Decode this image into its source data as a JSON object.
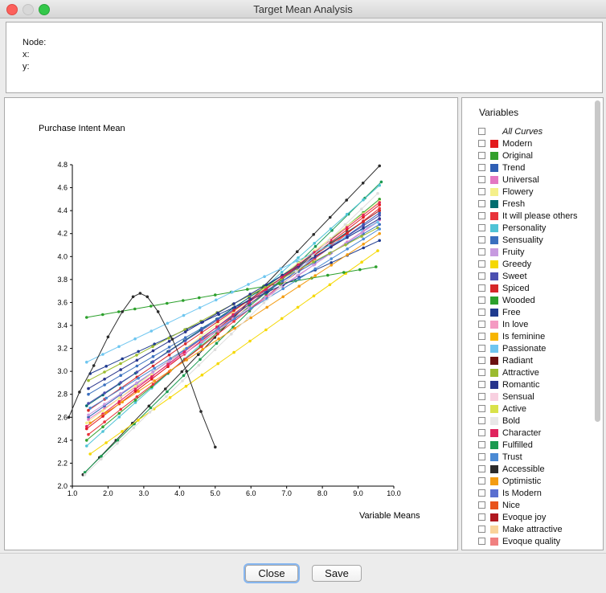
{
  "window": {
    "title": "Target Mean Analysis"
  },
  "info": {
    "node_label": "Node:",
    "x_label": "x:",
    "y_label": "y:"
  },
  "legend": {
    "title": "Variables",
    "items": [
      {
        "label": "All Curves",
        "color": ""
      },
      {
        "label": "Modern",
        "color": "#e31a1c"
      },
      {
        "label": "Original",
        "color": "#33a02c"
      },
      {
        "label": "Trend",
        "color": "#2f5fb5"
      },
      {
        "label": "Universal",
        "color": "#e377c2"
      },
      {
        "label": "Flowery",
        "color": "#f5f08a"
      },
      {
        "label": "Fresh",
        "color": "#006d6f"
      },
      {
        "label": "It will please others",
        "color": "#e8333a"
      },
      {
        "label": "Personality",
        "color": "#4fc3d6"
      },
      {
        "label": "Sensuality",
        "color": "#3a6fbf"
      },
      {
        "label": "Fruity",
        "color": "#c79ae0"
      },
      {
        "label": "Greedy",
        "color": "#f5d800"
      },
      {
        "label": "Sweet",
        "color": "#4b4fb0"
      },
      {
        "label": "Spiced",
        "color": "#d62728"
      },
      {
        "label": "Wooded",
        "color": "#2ca02c"
      },
      {
        "label": "Free",
        "color": "#1f3b8f"
      },
      {
        "label": "In love",
        "color": "#f49ac2"
      },
      {
        "label": "Is feminine",
        "color": "#f7b500"
      },
      {
        "label": "Passionate",
        "color": "#6ec6f0"
      },
      {
        "label": "Radiant",
        "color": "#6b1010"
      },
      {
        "label": "Attractive",
        "color": "#9bbb2f"
      },
      {
        "label": "Romantic",
        "color": "#27348b"
      },
      {
        "label": "Sensual",
        "color": "#f8d0e0"
      },
      {
        "label": "Active",
        "color": "#d9e24a"
      },
      {
        "label": "Bold",
        "color": "#e8e8e8"
      },
      {
        "label": "Character",
        "color": "#e0245e"
      },
      {
        "label": "Fulfilled",
        "color": "#1a9a50"
      },
      {
        "label": "Trust",
        "color": "#4a8ad4"
      },
      {
        "label": "Accessible",
        "color": "#2b2b2b"
      },
      {
        "label": "Optimistic",
        "color": "#f39c12"
      },
      {
        "label": "Is Modern",
        "color": "#5a6fd0"
      },
      {
        "label": "Nice",
        "color": "#e8531c"
      },
      {
        "label": "Evoque joy",
        "color": "#b0171f"
      },
      {
        "label": "Make attractive",
        "color": "#f9d39a"
      },
      {
        "label": "Evoque quality",
        "color": "#f08080"
      }
    ]
  },
  "chart_data": {
    "type": "line",
    "ylabel": "Purchase Intent Mean",
    "xlabel": "Variable Means",
    "xlim": [
      1.0,
      10.0
    ],
    "ylim": [
      2.0,
      4.8
    ],
    "xticks": [
      "1.0",
      "2.0",
      "3.0",
      "4.0",
      "5.0",
      "6.0",
      "7.0",
      "8.0",
      "9.0",
      "10.0"
    ],
    "yticks": [
      "2.0",
      "2.2",
      "2.4",
      "2.6",
      "2.8",
      "3.0",
      "3.2",
      "3.4",
      "3.6",
      "3.8",
      "4.0",
      "4.2",
      "4.4",
      "4.6",
      "4.8"
    ],
    "grid": false,
    "series": [
      {
        "color": "#2b2b2b",
        "x": [
          1.3,
          9.6
        ],
        "y": [
          2.1,
          4.79
        ]
      },
      {
        "color": "#1a9a50",
        "x": [
          1.35,
          9.65
        ],
        "y": [
          2.12,
          4.65
        ]
      },
      {
        "color": "#4fc3d6",
        "x": [
          1.4,
          9.6
        ],
        "y": [
          2.35,
          4.62
        ]
      },
      {
        "color": "#e31a1c",
        "x": [
          1.4,
          9.6
        ],
        "y": [
          2.5,
          4.45
        ]
      },
      {
        "color": "#33a02c",
        "x": [
          1.4,
          9.6
        ],
        "y": [
          2.4,
          4.5
        ]
      },
      {
        "color": "#2f5fb5",
        "x": [
          1.45,
          9.6
        ],
        "y": [
          2.6,
          4.38
        ]
      },
      {
        "color": "#e377c2",
        "x": [
          1.45,
          9.6
        ],
        "y": [
          2.58,
          4.32
        ]
      },
      {
        "color": "#f5f08a",
        "x": [
          1.4,
          9.6
        ],
        "y": [
          2.55,
          4.48
        ]
      },
      {
        "color": "#006d6f",
        "x": [
          1.4,
          9.6
        ],
        "y": [
          2.7,
          4.4
        ]
      },
      {
        "color": "#e8333a",
        "x": [
          1.45,
          9.6
        ],
        "y": [
          2.45,
          4.42
        ]
      },
      {
        "color": "#3a6fbf",
        "x": [
          1.45,
          9.6
        ],
        "y": [
          2.8,
          4.28
        ]
      },
      {
        "color": "#c79ae0",
        "x": [
          1.45,
          9.55
        ],
        "y": [
          2.62,
          4.3
        ]
      },
      {
        "color": "#f5d800",
        "x": [
          1.5,
          9.55
        ],
        "y": [
          2.28,
          4.05
        ]
      },
      {
        "color": "#4b4fb0",
        "x": [
          1.45,
          9.6
        ],
        "y": [
          2.72,
          4.36
        ]
      },
      {
        "color": "#d62728",
        "x": [
          1.45,
          9.6
        ],
        "y": [
          2.66,
          4.4
        ]
      },
      {
        "color": "#2ca02c",
        "x": [
          1.4,
          9.5
        ],
        "y": [
          3.47,
          3.91
        ]
      },
      {
        "color": "#1f3b8f",
        "x": [
          1.5,
          9.6
        ],
        "y": [
          2.98,
          4.14
        ]
      },
      {
        "color": "#6ec6f0",
        "x": [
          1.4,
          9.55
        ],
        "y": [
          3.08,
          4.3
        ]
      },
      {
        "color": "#9bbb2f",
        "x": [
          1.45,
          9.55
        ],
        "y": [
          2.92,
          4.25
        ]
      },
      {
        "color": "#27348b",
        "x": [
          1.45,
          9.6
        ],
        "y": [
          2.85,
          4.33
        ]
      },
      {
        "color": "#e0245e",
        "x": [
          1.4,
          9.6
        ],
        "y": [
          2.52,
          4.47
        ]
      },
      {
        "color": "#f39c12",
        "x": [
          1.5,
          9.6
        ],
        "y": [
          2.55,
          4.2
        ]
      },
      {
        "color": "#4a8ad4",
        "x": [
          1.5,
          9.6
        ],
        "y": [
          2.68,
          4.24
        ]
      },
      {
        "color": "#dddddd",
        "x": [
          1.35,
          9.55
        ],
        "y": [
          2.1,
          4.55
        ]
      },
      {
        "color": "#2b2b2b",
        "x": [
          0.9,
          1.2,
          1.6,
          2.0,
          2.4,
          2.7,
          2.9,
          3.1,
          3.4,
          3.8,
          4.2,
          4.6,
          5.0
        ],
        "y": [
          2.6,
          2.82,
          3.05,
          3.3,
          3.52,
          3.65,
          3.68,
          3.65,
          3.52,
          3.28,
          3.0,
          2.65,
          2.34
        ]
      }
    ]
  },
  "buttons": {
    "close": "Close",
    "save": "Save"
  }
}
